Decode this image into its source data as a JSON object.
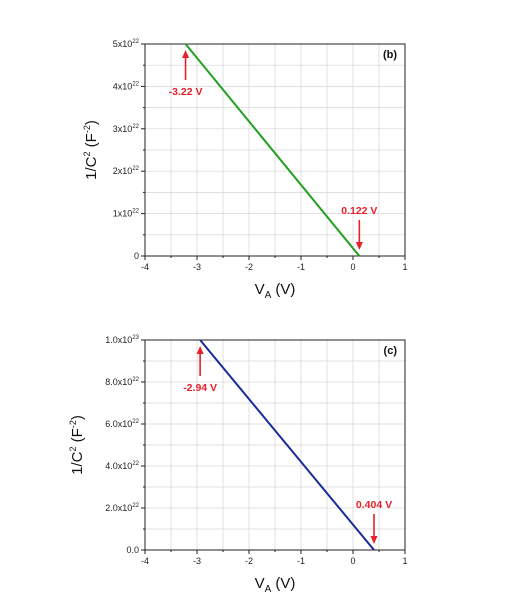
{
  "chart_data": [
    {
      "type": "line",
      "panel_label": "(b)",
      "xlabel": {
        "main": "V",
        "sub": "A",
        "unit": "(V)"
      },
      "ylabel": {
        "pre": "1/C",
        "sup": "2",
        "mid": "(F",
        "unit_sup": "-2",
        "post": ")"
      },
      "xlim": [
        -4,
        1
      ],
      "ylim": [
        0,
        5e+22
      ],
      "x_ticks": [
        -4,
        -3,
        -2,
        -1,
        0,
        1
      ],
      "y_ticks": [
        {
          "value": 0,
          "mant": "0",
          "exp": ""
        },
        {
          "value": 1e+22,
          "mant": "1x10",
          "exp": "22"
        },
        {
          "value": 2e+22,
          "mant": "2x10",
          "exp": "22"
        },
        {
          "value": 3e+22,
          "mant": "3x10",
          "exp": "22"
        },
        {
          "value": 4e+22,
          "mant": "4x10",
          "exp": "22"
        },
        {
          "value": 5e+22,
          "mant": "5x10",
          "exp": "22"
        }
      ],
      "grid": true,
      "series": [
        {
          "color": "#22a022",
          "x": [
            -3.22,
            0.122
          ],
          "y": [
            5e+22,
            0
          ]
        }
      ],
      "annotations": [
        {
          "text": "-3.22 V",
          "x": -3.22,
          "y": 5e+22,
          "direction": "up"
        },
        {
          "text": "0.122 V",
          "x": 0.122,
          "y": 0,
          "direction": "down"
        }
      ],
      "annotation_color": "#e8202a"
    },
    {
      "type": "line",
      "panel_label": "(c)",
      "xlabel": {
        "main": "V",
        "sub": "A",
        "unit": "(V)"
      },
      "ylabel": {
        "pre": "1/C",
        "sup": "2",
        "mid": "(F",
        "unit_sup": "-2",
        "post": ")"
      },
      "xlim": [
        -4,
        1
      ],
      "ylim": [
        0,
        1e+23
      ],
      "x_ticks": [
        -4,
        -3,
        -2,
        -1,
        0,
        1
      ],
      "y_ticks": [
        {
          "value": 0,
          "mant": "0.0",
          "exp": ""
        },
        {
          "value": 2e+22,
          "mant": "2.0x10",
          "exp": "22"
        },
        {
          "value": 4e+22,
          "mant": "4.0x10",
          "exp": "22"
        },
        {
          "value": 6e+22,
          "mant": "6.0x10",
          "exp": "22"
        },
        {
          "value": 8e+22,
          "mant": "8.0x10",
          "exp": "22"
        },
        {
          "value": 1e+23,
          "mant": "1.0x10",
          "exp": "23"
        }
      ],
      "grid": true,
      "series": [
        {
          "color": "#1a2a9a",
          "x": [
            -2.94,
            0.404
          ],
          "y": [
            1e+23,
            0
          ]
        }
      ],
      "annotations": [
        {
          "text": "-2.94 V",
          "x": -2.94,
          "y": 1e+23,
          "direction": "up"
        },
        {
          "text": "0.404 V",
          "x": 0.404,
          "y": 0,
          "direction": "down"
        }
      ],
      "annotation_color": "#e8202a"
    }
  ]
}
